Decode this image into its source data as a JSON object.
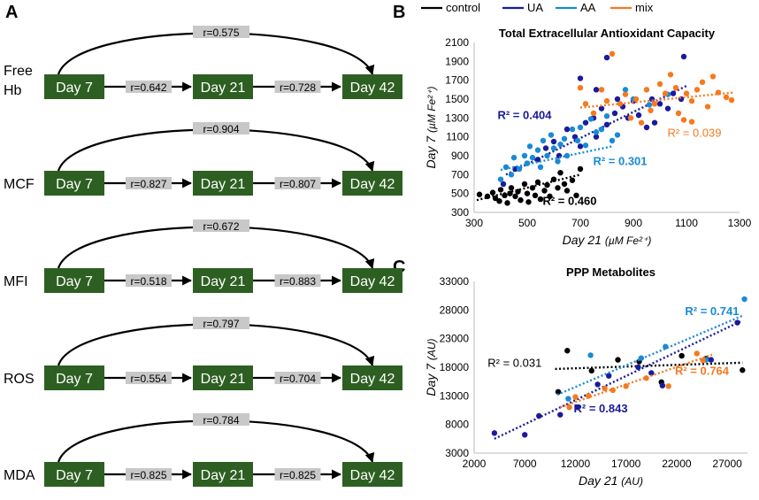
{
  "panels": {
    "A": "A",
    "B": "B",
    "C": "C"
  },
  "colors": {
    "box": "#2e5f22",
    "control": "#000000",
    "UA": "#1a1a9a",
    "AA": "#1a8ad4",
    "mix": "#f47a20",
    "label_bg": "#c8c8c8"
  },
  "flow": {
    "days": [
      "Day 7",
      "Day 21",
      "Day 42"
    ],
    "rows": [
      {
        "label": [
          "Free",
          "Hb"
        ],
        "r_7_42": "r=0.575",
        "r_7_21": "r=0.642",
        "r_21_42": "r=0.728"
      },
      {
        "label": [
          "MCF"
        ],
        "r_7_42": "r=0.904",
        "r_7_21": "r=0.827",
        "r_21_42": "r=0.807"
      },
      {
        "label": [
          "MFI"
        ],
        "r_7_42": "r=0.672",
        "r_7_21": "r=0.518",
        "r_21_42": "r=0.883"
      },
      {
        "label": [
          "ROS"
        ],
        "r_7_42": "r=0.797",
        "r_7_21": "r=0.554",
        "r_21_42": "r=0.704"
      },
      {
        "label": [
          "MDA"
        ],
        "r_7_42": "r=0.784",
        "r_7_21": "r=0.825",
        "r_21_42": "r=0.825"
      }
    ]
  },
  "legend": [
    {
      "key": "control",
      "label": "control"
    },
    {
      "key": "UA",
      "label": "UA"
    },
    {
      "key": "AA",
      "label": "AA"
    },
    {
      "key": "mix",
      "label": "mix"
    }
  ],
  "chart_data": [
    {
      "type": "scatter",
      "title": "Total Extracellular Antioxidant Capacity",
      "xlabel": "Day 21",
      "xlabel_unit": "(µM Fe²⁺)",
      "ylabel": "Day 7",
      "ylabel_unit": "(µM Fe²⁺)",
      "xlim": [
        300,
        1300
      ],
      "ylim": [
        300,
        2100
      ],
      "xticks": [
        300,
        500,
        700,
        900,
        1100,
        1300
      ],
      "yticks": [
        300,
        500,
        700,
        900,
        1100,
        1300,
        1500,
        1700,
        1900,
        2100
      ],
      "series": [
        {
          "name": "control",
          "points": [
            [
              320,
              490
            ],
            [
              350,
              470
            ],
            [
              370,
              510
            ],
            [
              380,
              450
            ],
            [
              395,
              420
            ],
            [
              400,
              540
            ],
            [
              415,
              480
            ],
            [
              425,
              400
            ],
            [
              435,
              500
            ],
            [
              440,
              560
            ],
            [
              455,
              470
            ],
            [
              465,
              520
            ],
            [
              475,
              430
            ],
            [
              490,
              600
            ],
            [
              500,
              500
            ],
            [
              505,
              410
            ],
            [
              520,
              560
            ],
            [
              530,
              480
            ],
            [
              540,
              620
            ],
            [
              550,
              440
            ],
            [
              565,
              530
            ],
            [
              575,
              590
            ],
            [
              585,
              470
            ],
            [
              600,
              650
            ],
            [
              615,
              560
            ],
            [
              625,
              720
            ],
            [
              640,
              600
            ],
            [
              650,
              530
            ],
            [
              670,
              640
            ],
            [
              685,
              480
            ],
            [
              700,
              760
            ]
          ],
          "trend": [
            [
              310,
              430
            ],
            [
              700,
              700
            ]
          ]
        },
        {
          "name": "UA",
          "points": [
            [
              410,
              600
            ],
            [
              455,
              760
            ],
            [
              500,
              820
            ],
            [
              540,
              860
            ],
            [
              570,
              980
            ],
            [
              600,
              1050
            ],
            [
              620,
              900
            ],
            [
              650,
              1180
            ],
            [
              680,
              1100
            ],
            [
              700,
              1000
            ],
            [
              720,
              1250
            ],
            [
              750,
              1300
            ],
            [
              760,
              1100
            ],
            [
              780,
              1400
            ],
            [
              800,
              1230
            ],
            [
              830,
              1350
            ],
            [
              860,
              1420
            ],
            [
              880,
              1300
            ],
            [
              900,
              1480
            ],
            [
              920,
              1330
            ],
            [
              950,
              1200
            ],
            [
              970,
              1500
            ],
            [
              980,
              1250
            ],
            [
              1000,
              1450
            ],
            [
              1030,
              1400
            ],
            [
              1050,
              1560
            ],
            [
              1080,
              1500
            ],
            [
              1090,
              1950
            ],
            [
              800,
              1940
            ],
            [
              760,
              1600
            ],
            [
              700,
              1720
            ],
            [
              840,
              1500
            ]
          ],
          "trend": [
            [
              420,
              700
            ],
            [
              1100,
              1640
            ]
          ]
        },
        {
          "name": "AA",
          "points": [
            [
              400,
              650
            ],
            [
              420,
              780
            ],
            [
              440,
              700
            ],
            [
              450,
              880
            ],
            [
              470,
              760
            ],
            [
              490,
              900
            ],
            [
              500,
              820
            ],
            [
              510,
              1000
            ],
            [
              520,
              880
            ],
            [
              540,
              960
            ],
            [
              550,
              780
            ],
            [
              560,
              1060
            ],
            [
              575,
              900
            ],
            [
              590,
              1120
            ],
            [
              600,
              980
            ],
            [
              615,
              840
            ],
            [
              625,
              1020
            ],
            [
              640,
              1080
            ],
            [
              650,
              900
            ],
            [
              670,
              1180
            ],
            [
              690,
              1060
            ],
            [
              700,
              1200
            ],
            [
              720,
              1010
            ],
            [
              740,
              1290
            ],
            [
              760,
              1150
            ],
            [
              780,
              1180
            ],
            [
              800,
              1320
            ],
            [
              820,
              1060
            ],
            [
              840,
              1120
            ],
            [
              870,
              1600
            ],
            [
              900,
              1500
            ],
            [
              960,
              1440
            ],
            [
              1030,
              1550
            ]
          ],
          "trend": [
            [
              400,
              750
            ],
            [
              820,
              1000
            ]
          ]
        },
        {
          "name": "mix",
          "points": [
            [
              700,
              1620
            ],
            [
              720,
              1450
            ],
            [
              750,
              1350
            ],
            [
              780,
              1600
            ],
            [
              800,
              1480
            ],
            [
              820,
              1980
            ],
            [
              850,
              1450
            ],
            [
              870,
              1550
            ],
            [
              890,
              1300
            ],
            [
              910,
              1500
            ],
            [
              930,
              1250
            ],
            [
              950,
              1600
            ],
            [
              965,
              1380
            ],
            [
              980,
              1450
            ],
            [
              1000,
              1660
            ],
            [
              1020,
              1560
            ],
            [
              1040,
              1760
            ],
            [
              1060,
              1620
            ],
            [
              1070,
              1350
            ],
            [
              1090,
              1280
            ],
            [
              1100,
              1560
            ],
            [
              1120,
              1480
            ],
            [
              1140,
              1600
            ],
            [
              1160,
              1680
            ],
            [
              1180,
              1420
            ],
            [
              1200,
              1740
            ],
            [
              1220,
              1570
            ],
            [
              1250,
              1520
            ],
            [
              1270,
              1490
            ],
            [
              1120,
              1260
            ]
          ],
          "trend": [
            [
              700,
              1410
            ],
            [
              1280,
              1570
            ]
          ]
        }
      ],
      "annotations": [
        {
          "series": "UA",
          "text": "R² = 0.404",
          "x": 490,
          "y": 1290
        },
        {
          "series": "AA",
          "text": "R² = 0.301",
          "x": 850,
          "y": 800
        },
        {
          "series": "mix",
          "text": "R² = 0.039",
          "x": 1130,
          "y": 1100
        },
        {
          "series": "control",
          "text": "R² = 0.460",
          "x": 660,
          "y": 380
        }
      ]
    },
    {
      "type": "scatter",
      "title": "PPP Metabolites",
      "xlabel": "Day 21",
      "xlabel_unit": "(AU)",
      "ylabel": "Day 7",
      "ylabel_unit": "(AU)",
      "xlim": [
        2000,
        29000
      ],
      "ylim": [
        3000,
        33000
      ],
      "xticks": [
        2000,
        7000,
        12000,
        17000,
        22000,
        27000
      ],
      "xtick_labels": [
        "2000",
        "7000",
        "12000",
        "17000",
        "22000",
        "27000"
      ],
      "yticks": [
        3000,
        8000,
        13000,
        18000,
        23000,
        28000,
        33000
      ],
      "series": [
        {
          "name": "control",
          "points": [
            [
              10300,
              13700
            ],
            [
              11200,
              20900
            ],
            [
              13600,
              17400
            ],
            [
              16200,
              19300
            ],
            [
              18300,
              19000
            ],
            [
              20500,
              15400
            ],
            [
              22500,
              20000
            ],
            [
              24900,
              19500
            ],
            [
              28500,
              17500
            ]
          ],
          "trend": [
            [
              10000,
              17700
            ],
            [
              28500,
              18800
            ]
          ]
        },
        {
          "name": "UA",
          "points": [
            [
              4000,
              6500
            ],
            [
              7000,
              6200
            ],
            [
              8400,
              9500
            ],
            [
              10500,
              9700
            ],
            [
              12200,
              11000
            ],
            [
              14200,
              15000
            ],
            [
              15300,
              16500
            ],
            [
              18200,
              18000
            ],
            [
              19500,
              17000
            ],
            [
              20600,
              14800
            ],
            [
              25400,
              19300
            ],
            [
              28000,
              25800
            ]
          ],
          "trend": [
            [
              4000,
              5500
            ],
            [
              28300,
              26000
            ]
          ]
        },
        {
          "name": "AA",
          "points": [
            [
              11300,
              12500
            ],
            [
              13500,
              20100
            ],
            [
              18500,
              19600
            ],
            [
              20900,
              21600
            ],
            [
              24900,
              19300
            ],
            [
              28700,
              29900
            ]
          ],
          "trend": [
            [
              10200,
              13200
            ],
            [
              28500,
              27000
            ]
          ]
        },
        {
          "name": "mix",
          "points": [
            [
              11400,
              11000
            ],
            [
              12000,
              12800
            ],
            [
              13300,
              13000
            ],
            [
              14900,
              14300
            ],
            [
              15700,
              14000
            ],
            [
              17000,
              14700
            ],
            [
              19000,
              16100
            ],
            [
              21200,
              14700
            ],
            [
              24000,
              20400
            ],
            [
              24600,
              19200
            ]
          ],
          "trend": [
            [
              10500,
              11000
            ],
            [
              25500,
              20200
            ]
          ]
        }
      ],
      "annotations": [
        {
          "series": "AA",
          "text": "R² = 0.741",
          "x": 25500,
          "y": 27100
        },
        {
          "series": "control",
          "text": "R² = 0.031",
          "x": 6000,
          "y": 18100
        },
        {
          "series": "mix",
          "text": "R² = 0.764",
          "x": 24500,
          "y": 16700
        },
        {
          "series": "UA",
          "text": "R² = 0.843",
          "x": 14500,
          "y": 10100
        }
      ]
    }
  ]
}
